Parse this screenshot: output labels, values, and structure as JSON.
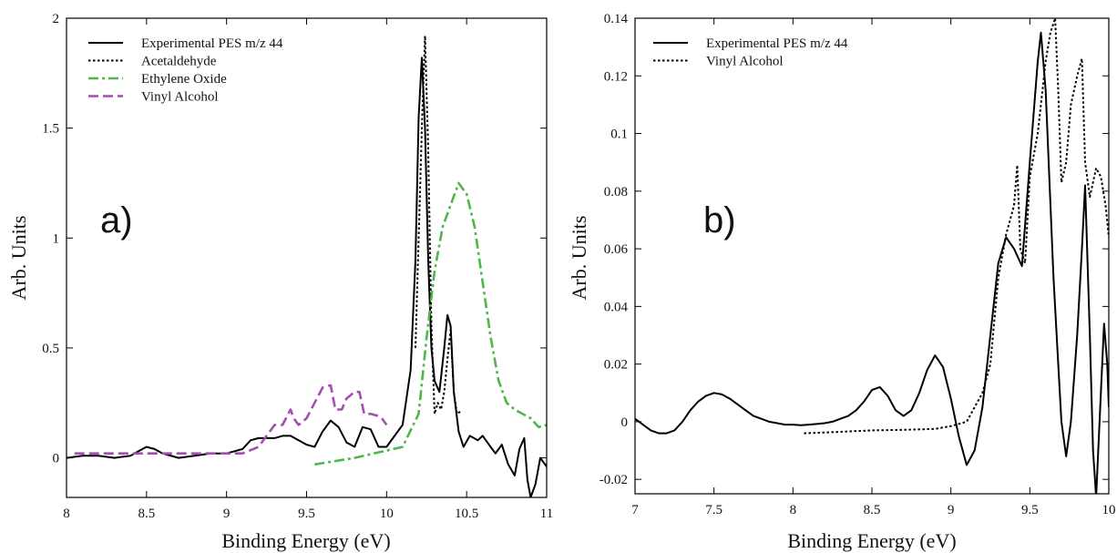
{
  "chart_data": [
    {
      "type": "line",
      "panel_label": "a)",
      "title": "",
      "xlabel": "Binding Energy (eV)",
      "ylabel": "Arb. Units",
      "xlim": [
        8,
        11
      ],
      "ylim": [
        -0.18,
        2
      ],
      "xticks": [
        "8",
        "8.5",
        "9",
        "9.5",
        "10",
        "10.5",
        "11"
      ],
      "xtick_values": [
        8,
        8.5,
        9,
        9.5,
        10,
        10.5,
        11
      ],
      "yticks": [
        "0",
        "0.5",
        "1",
        "1.5",
        "2"
      ],
      "ytick_values": [
        0,
        0.5,
        1,
        1.5,
        2
      ],
      "grid": false,
      "legend_position": "top-left",
      "series": [
        {
          "name": "Experimental PES m/z 44",
          "color": "#000000",
          "style": "solid",
          "points": [
            [
              8.0,
              0.0
            ],
            [
              8.1,
              0.01
            ],
            [
              8.2,
              0.01
            ],
            [
              8.3,
              0.0
            ],
            [
              8.4,
              0.01
            ],
            [
              8.45,
              0.03
            ],
            [
              8.5,
              0.05
            ],
            [
              8.55,
              0.04
            ],
            [
              8.6,
              0.02
            ],
            [
              8.7,
              0.0
            ],
            [
              8.8,
              0.01
            ],
            [
              8.9,
              0.02
            ],
            [
              9.0,
              0.02
            ],
            [
              9.1,
              0.04
            ],
            [
              9.15,
              0.08
            ],
            [
              9.2,
              0.09
            ],
            [
              9.3,
              0.09
            ],
            [
              9.35,
              0.1
            ],
            [
              9.4,
              0.1
            ],
            [
              9.45,
              0.08
            ],
            [
              9.5,
              0.06
            ],
            [
              9.55,
              0.05
            ],
            [
              9.6,
              0.12
            ],
            [
              9.65,
              0.17
            ],
            [
              9.7,
              0.14
            ],
            [
              9.75,
              0.07
            ],
            [
              9.8,
              0.05
            ],
            [
              9.85,
              0.14
            ],
            [
              9.9,
              0.13
            ],
            [
              9.95,
              0.05
            ],
            [
              10.0,
              0.05
            ],
            [
              10.05,
              0.1
            ],
            [
              10.1,
              0.15
            ],
            [
              10.15,
              0.4
            ],
            [
              10.18,
              0.9
            ],
            [
              10.2,
              1.55
            ],
            [
              10.22,
              1.82
            ],
            [
              10.24,
              1.5
            ],
            [
              10.26,
              0.9
            ],
            [
              10.28,
              0.5
            ],
            [
              10.3,
              0.35
            ],
            [
              10.33,
              0.3
            ],
            [
              10.36,
              0.5
            ],
            [
              10.38,
              0.65
            ],
            [
              10.4,
              0.6
            ],
            [
              10.42,
              0.3
            ],
            [
              10.45,
              0.12
            ],
            [
              10.48,
              0.05
            ],
            [
              10.52,
              0.1
            ],
            [
              10.57,
              0.08
            ],
            [
              10.6,
              0.1
            ],
            [
              10.65,
              0.05
            ],
            [
              10.68,
              0.02
            ],
            [
              10.72,
              0.06
            ],
            [
              10.76,
              -0.03
            ],
            [
              10.8,
              -0.08
            ],
            [
              10.83,
              0.04
            ],
            [
              10.86,
              0.09
            ],
            [
              10.88,
              -0.1
            ],
            [
              10.9,
              -0.18
            ],
            [
              10.93,
              -0.12
            ],
            [
              10.96,
              0.0
            ],
            [
              11.0,
              -0.04
            ]
          ]
        },
        {
          "name": "Acetaldehyde",
          "color": "#000000",
          "style": "dotted",
          "points": [
            [
              10.18,
              0.5
            ],
            [
              10.2,
              1.0
            ],
            [
              10.22,
              1.5
            ],
            [
              10.24,
              1.92
            ],
            [
              10.26,
              1.4
            ],
            [
              10.28,
              0.6
            ],
            [
              10.3,
              0.2
            ],
            [
              10.32,
              0.25
            ],
            [
              10.34,
              0.22
            ],
            [
              10.36,
              0.3
            ],
            [
              10.38,
              0.45
            ],
            [
              10.4,
              0.58
            ],
            [
              10.42,
              0.3
            ],
            [
              10.44,
              0.2
            ],
            [
              10.46,
              0.21
            ]
          ]
        },
        {
          "name": "Ethylene Oxide",
          "color": "#4CB848",
          "style": "dashdot",
          "points": [
            [
              9.55,
              -0.03
            ],
            [
              9.8,
              0.0
            ],
            [
              10.1,
              0.05
            ],
            [
              10.2,
              0.2
            ],
            [
              10.25,
              0.55
            ],
            [
              10.3,
              0.85
            ],
            [
              10.35,
              1.05
            ],
            [
              10.4,
              1.15
            ],
            [
              10.45,
              1.25
            ],
            [
              10.5,
              1.2
            ],
            [
              10.55,
              1.05
            ],
            [
              10.6,
              0.8
            ],
            [
              10.65,
              0.55
            ],
            [
              10.7,
              0.35
            ],
            [
              10.75,
              0.25
            ],
            [
              10.8,
              0.22
            ],
            [
              10.9,
              0.18
            ],
            [
              10.95,
              0.14
            ],
            [
              11.0,
              0.15
            ]
          ]
        },
        {
          "name": "Vinyl Alcohol",
          "color": "#A24FB0",
          "style": "dashed",
          "points": [
            [
              8.05,
              0.02
            ],
            [
              8.7,
              0.02
            ],
            [
              9.1,
              0.02
            ],
            [
              9.2,
              0.05
            ],
            [
              9.25,
              0.1
            ],
            [
              9.3,
              0.15
            ],
            [
              9.35,
              0.15
            ],
            [
              9.4,
              0.22
            ],
            [
              9.42,
              0.18
            ],
            [
              9.45,
              0.15
            ],
            [
              9.5,
              0.18
            ],
            [
              9.55,
              0.25
            ],
            [
              9.6,
              0.32
            ],
            [
              9.65,
              0.33
            ],
            [
              9.68,
              0.22
            ],
            [
              9.72,
              0.22
            ],
            [
              9.75,
              0.27
            ],
            [
              9.8,
              0.3
            ],
            [
              9.83,
              0.3
            ],
            [
              9.86,
              0.2
            ],
            [
              9.9,
              0.2
            ],
            [
              9.95,
              0.19
            ],
            [
              9.97,
              0.18
            ],
            [
              10.0,
              0.15
            ]
          ]
        }
      ]
    },
    {
      "type": "line",
      "panel_label": "b)",
      "title": "",
      "xlabel": "Binding Energy (eV)",
      "ylabel": "Arb. Units",
      "xlim": [
        7,
        10
      ],
      "ylim": [
        -0.025,
        0.14
      ],
      "xticks": [
        "7",
        "7.5",
        "8",
        "8.5",
        "9",
        "9.5",
        "10"
      ],
      "xtick_values": [
        7,
        7.5,
        8,
        8.5,
        9,
        9.5,
        10
      ],
      "yticks": [
        "-0.02",
        "0",
        "0.02",
        "0.04",
        "0.06",
        "0.08",
        "0.1",
        "0.12",
        "0.14"
      ],
      "ytick_values": [
        -0.02,
        0,
        0.02,
        0.04,
        0.06,
        0.08,
        0.1,
        0.12,
        0.14
      ],
      "grid": false,
      "legend_position": "top-left",
      "series": [
        {
          "name": "Experimental PES m/z 44",
          "color": "#000000",
          "style": "solid",
          "points": [
            [
              7.0,
              0.001
            ],
            [
              7.05,
              -0.001
            ],
            [
              7.1,
              -0.003
            ],
            [
              7.15,
              -0.004
            ],
            [
              7.2,
              -0.004
            ],
            [
              7.25,
              -0.003
            ],
            [
              7.3,
              0.0
            ],
            [
              7.35,
              0.004
            ],
            [
              7.4,
              0.007
            ],
            [
              7.45,
              0.009
            ],
            [
              7.5,
              0.01
            ],
            [
              7.55,
              0.0095
            ],
            [
              7.6,
              0.008
            ],
            [
              7.65,
              0.006
            ],
            [
              7.7,
              0.004
            ],
            [
              7.75,
              0.002
            ],
            [
              7.8,
              0.001
            ],
            [
              7.85,
              0.0
            ],
            [
              7.9,
              -0.0005
            ],
            [
              7.95,
              -0.001
            ],
            [
              8.0,
              -0.001
            ],
            [
              8.05,
              -0.0012
            ],
            [
              8.1,
              -0.001
            ],
            [
              8.15,
              -0.0008
            ],
            [
              8.2,
              -0.0005
            ],
            [
              8.25,
              0.0
            ],
            [
              8.3,
              0.001
            ],
            [
              8.35,
              0.002
            ],
            [
              8.4,
              0.004
            ],
            [
              8.45,
              0.007
            ],
            [
              8.5,
              0.011
            ],
            [
              8.55,
              0.012
            ],
            [
              8.6,
              0.009
            ],
            [
              8.65,
              0.004
            ],
            [
              8.7,
              0.002
            ],
            [
              8.75,
              0.004
            ],
            [
              8.8,
              0.01
            ],
            [
              8.85,
              0.018
            ],
            [
              8.9,
              0.023
            ],
            [
              8.95,
              0.019
            ],
            [
              9.0,
              0.008
            ],
            [
              9.05,
              -0.005
            ],
            [
              9.1,
              -0.015
            ],
            [
              9.15,
              -0.01
            ],
            [
              9.2,
              0.005
            ],
            [
              9.25,
              0.03
            ],
            [
              9.3,
              0.055
            ],
            [
              9.35,
              0.064
            ],
            [
              9.4,
              0.06
            ],
            [
              9.45,
              0.054
            ],
            [
              9.5,
              0.09
            ],
            [
              9.55,
              0.125
            ],
            [
              9.57,
              0.135
            ],
            [
              9.6,
              0.115
            ],
            [
              9.65,
              0.05
            ],
            [
              9.68,
              0.02
            ],
            [
              9.7,
              0.0
            ],
            [
              9.73,
              -0.012
            ],
            [
              9.76,
              0.0
            ],
            [
              9.8,
              0.03
            ],
            [
              9.83,
              0.06
            ],
            [
              9.85,
              0.082
            ],
            [
              9.88,
              0.03
            ],
            [
              9.9,
              -0.01
            ],
            [
              9.92,
              -0.026
            ],
            [
              9.95,
              0.01
            ],
            [
              9.97,
              0.034
            ],
            [
              9.99,
              0.02
            ],
            [
              10.0,
              0.005
            ]
          ]
        },
        {
          "name": "Vinyl Alcohol",
          "color": "#000000",
          "style": "dotted",
          "points": [
            [
              8.07,
              -0.004
            ],
            [
              8.3,
              -0.0035
            ],
            [
              8.5,
              -0.003
            ],
            [
              8.7,
              -0.0028
            ],
            [
              8.9,
              -0.0025
            ],
            [
              9.0,
              -0.0015
            ],
            [
              9.1,
              0.0
            ],
            [
              9.2,
              0.01
            ],
            [
              9.25,
              0.02
            ],
            [
              9.3,
              0.05
            ],
            [
              9.35,
              0.065
            ],
            [
              9.4,
              0.075
            ],
            [
              9.42,
              0.089
            ],
            [
              9.44,
              0.06
            ],
            [
              9.47,
              0.055
            ],
            [
              9.5,
              0.085
            ],
            [
              9.55,
              0.1
            ],
            [
              9.6,
              0.125
            ],
            [
              9.63,
              0.135
            ],
            [
              9.66,
              0.14
            ],
            [
              9.68,
              0.115
            ],
            [
              9.7,
              0.083
            ],
            [
              9.73,
              0.09
            ],
            [
              9.76,
              0.11
            ],
            [
              9.8,
              0.12
            ],
            [
              9.83,
              0.126
            ],
            [
              9.85,
              0.09
            ],
            [
              9.88,
              0.078
            ],
            [
              9.92,
              0.088
            ],
            [
              9.95,
              0.085
            ],
            [
              9.98,
              0.075
            ],
            [
              10.0,
              0.064
            ]
          ]
        }
      ]
    }
  ]
}
